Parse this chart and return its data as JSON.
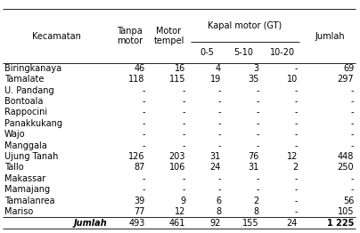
{
  "col_headers_top": [
    "Kecamatan",
    "Tanpa\nmotor",
    "Motor\ntempel",
    "Kapal motor (GT)",
    "Jumlah"
  ],
  "col_headers_sub": [
    "0-5",
    "5-10",
    "10-20"
  ],
  "rows": [
    [
      "Biringkanaya",
      "46",
      "16",
      "4",
      "3",
      "-",
      "69"
    ],
    [
      "Tamalate",
      "118",
      "115",
      "19",
      "35",
      "10",
      "297"
    ],
    [
      "U. Pandang",
      "-",
      "-",
      "-",
      "-",
      "-",
      "-"
    ],
    [
      "Bontoala",
      "-",
      "-",
      "-",
      "-",
      "-",
      "-"
    ],
    [
      "Rappocini",
      "-",
      "-",
      "-",
      "-",
      "-",
      "-"
    ],
    [
      "Panakkukang",
      "-",
      "-",
      "-",
      "-",
      "-",
      "-"
    ],
    [
      "Wajo",
      "-",
      "-",
      "-",
      "-",
      "-",
      "-"
    ],
    [
      "Manggala",
      "-",
      "-",
      "-",
      "-",
      "-",
      "-"
    ],
    [
      "Ujung Tanah",
      "126",
      "203",
      "31",
      "76",
      "12",
      "448"
    ],
    [
      "Tallo",
      "87",
      "106",
      "24",
      "31",
      "2",
      "250"
    ],
    [
      "Makassar",
      "-",
      "-",
      "-",
      "-",
      "-",
      "-"
    ],
    [
      "Mamajang",
      "-",
      "-",
      "-",
      "-",
      "-",
      "-"
    ],
    [
      "Tamalanrea",
      "39",
      "9",
      "6",
      "2",
      "-",
      "56"
    ],
    [
      "Mariso",
      "77",
      "12",
      "8",
      "8",
      "-",
      "105"
    ]
  ],
  "footer": [
    "Jumlah",
    "493",
    "461",
    "92",
    "155",
    "24",
    "1 225"
  ],
  "bg_color": "#ffffff",
  "text_color": "#000000",
  "font_size": 7.0
}
